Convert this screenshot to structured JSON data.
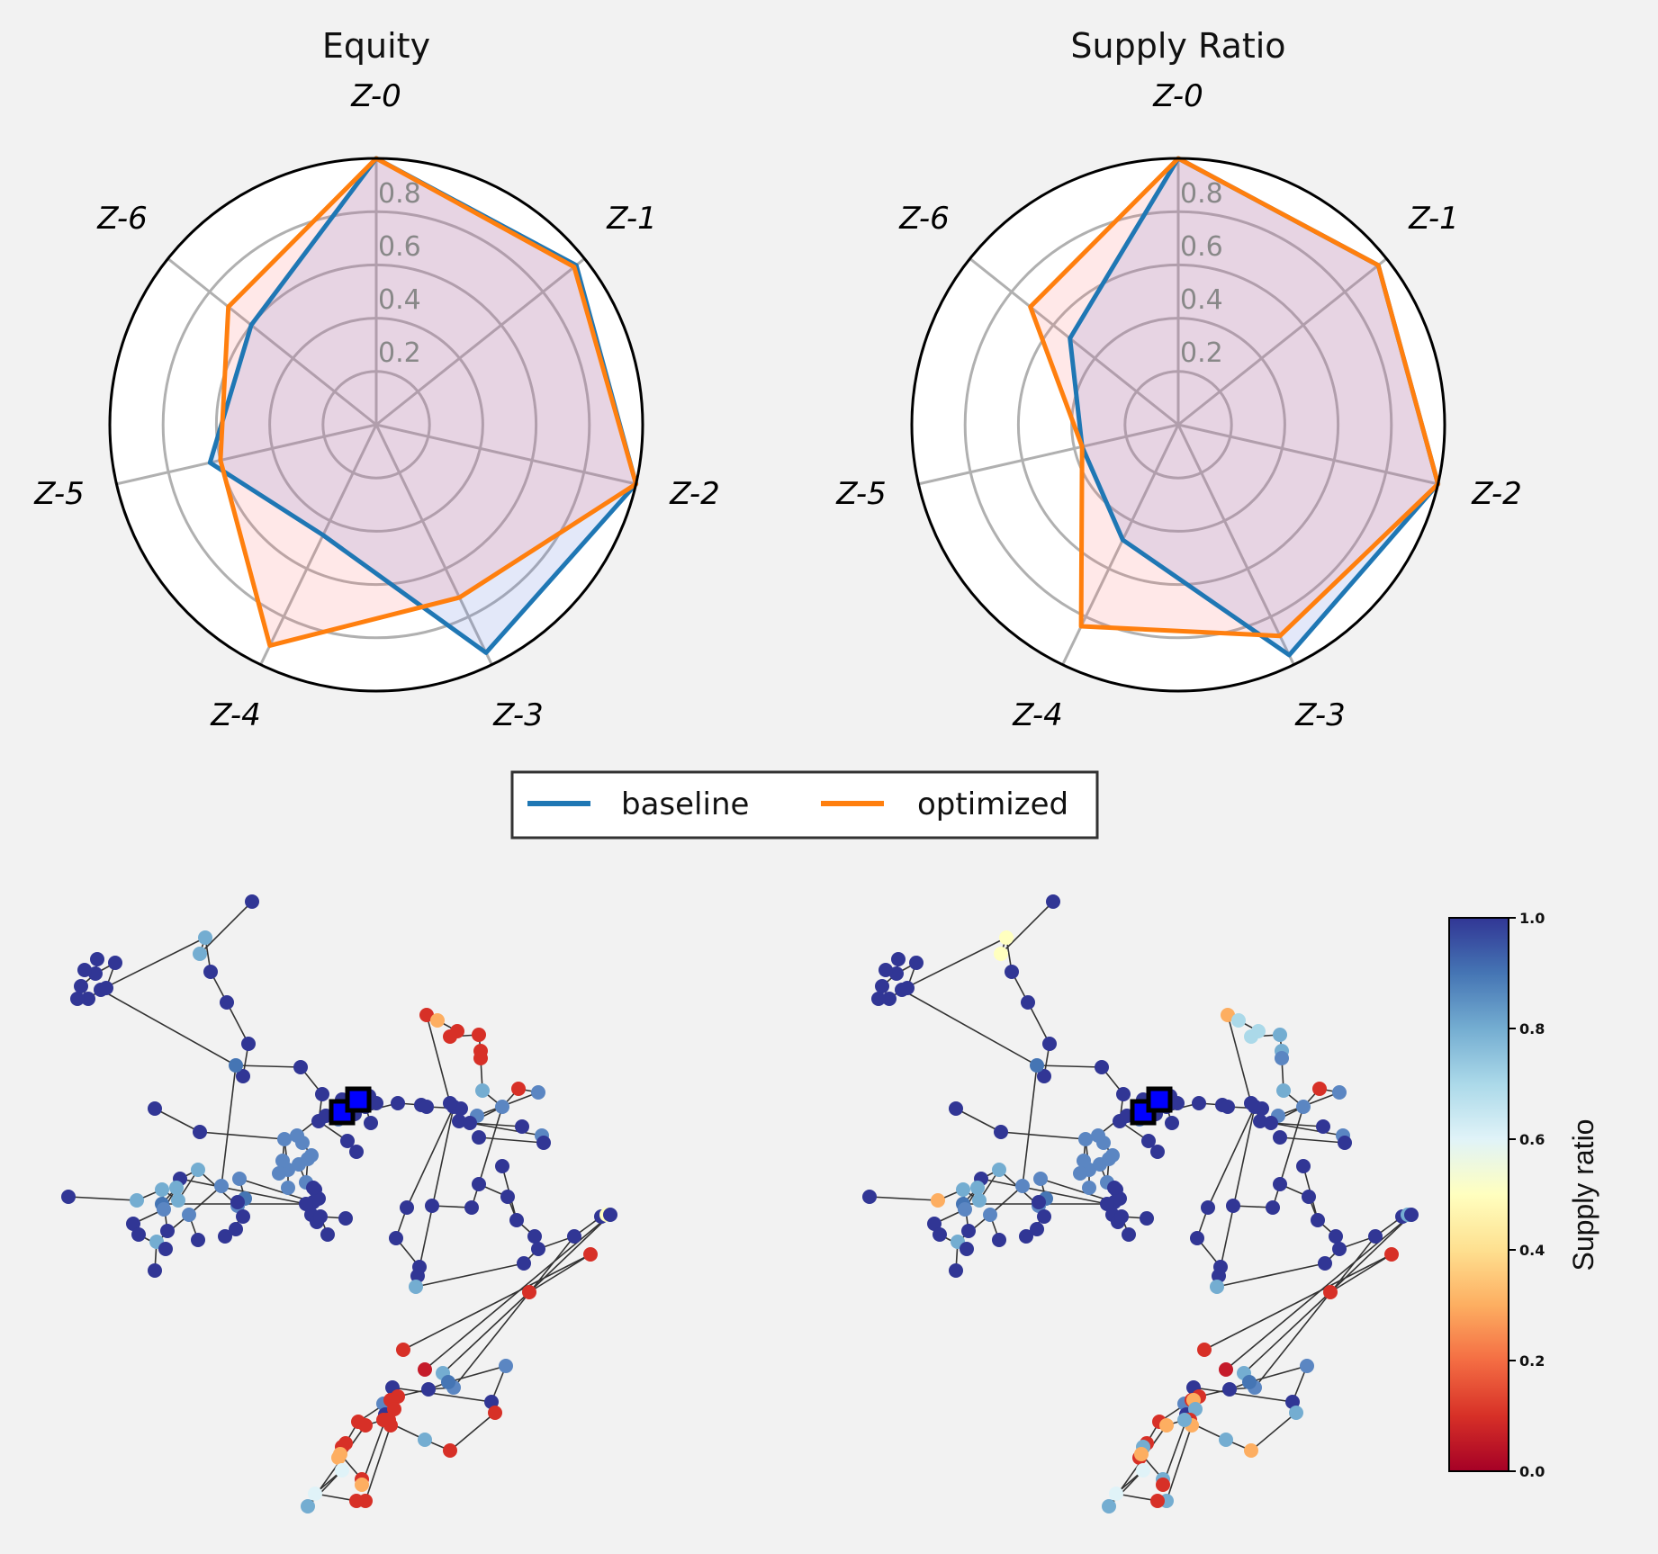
{
  "chart_data": [
    {
      "type": "radar",
      "title": "Equity",
      "categories": [
        "Z-0",
        "Z-1",
        "Z-2",
        "Z-3",
        "Z-4",
        "Z-5",
        "Z-6"
      ],
      "rlim": [
        0,
        1.0
      ],
      "r_ticks": [
        "0.2",
        "0.4",
        "0.6",
        "0.8"
      ],
      "series": [
        {
          "name": "baseline",
          "color": "#1f77b4",
          "values": [
            1.0,
            0.96,
            1.0,
            0.95,
            0.46,
            0.64,
            0.6
          ]
        },
        {
          "name": "optimized",
          "color": "#ff7f0e",
          "values": [
            1.0,
            0.95,
            1.0,
            0.72,
            0.92,
            0.6,
            0.71
          ]
        }
      ]
    },
    {
      "type": "radar",
      "title": "Supply Ratio",
      "categories": [
        "Z-0",
        "Z-1",
        "Z-2",
        "Z-3",
        "Z-4",
        "Z-5",
        "Z-6"
      ],
      "rlim": [
        0,
        1.0
      ],
      "r_ticks": [
        "0.2",
        "0.4",
        "0.6",
        "0.8"
      ],
      "series": [
        {
          "name": "baseline",
          "color": "#1f77b4",
          "values": [
            1.0,
            0.96,
            1.0,
            0.96,
            0.48,
            0.37,
            0.52
          ]
        },
        {
          "name": "optimized",
          "color": "#ff7f0e",
          "values": [
            1.0,
            0.96,
            1.0,
            0.88,
            0.84,
            0.37,
            0.71
          ]
        }
      ]
    },
    {
      "type": "network",
      "panel": "baseline",
      "note_value_meaning": "node color = supply ratio (0 red .. 1 blue)",
      "node_supply_ratios": {
        "dark_blue_nodes": 1.0,
        "light_blue_nodes": 0.8,
        "red_nodes": 0.05,
        "orange_nodes": 0.3,
        "yellow_nodes": 0.5
      }
    },
    {
      "type": "network",
      "panel": "optimized",
      "note_value_meaning": "node color = supply ratio (0 red .. 1 blue)",
      "node_supply_ratios": {
        "dark_blue_nodes": 1.0,
        "light_blue_nodes": 0.8,
        "red_nodes": 0.05,
        "orange_nodes": 0.3,
        "yellow_nodes": 0.5
      }
    }
  ],
  "legend": {
    "items": [
      {
        "label": "baseline",
        "color": "#1f77b4"
      },
      {
        "label": "optimized",
        "color": "#ff7f0e"
      }
    ]
  },
  "colorbar": {
    "label": "Supply ratio",
    "ticks": [
      "0.0",
      "0.2",
      "0.4",
      "0.6",
      "0.8",
      "1.0"
    ],
    "range": [
      0.0,
      1.0
    ]
  }
}
